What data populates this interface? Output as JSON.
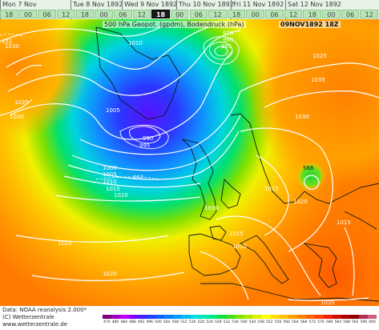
{
  "timeline": {
    "days": [
      {
        "label": "Mon 7 Nov",
        "hours": [
          "18"
        ]
      },
      {
        "label": "Tue 8 Nov 1892",
        "hours": [
          "00",
          "06",
          "12",
          "18"
        ]
      },
      {
        "label": "Wed 9 Nov 1892",
        "hours": [
          "00",
          "06",
          "12",
          "18"
        ]
      },
      {
        "label": "Thu 10 Nov 1892",
        "hours": [
          "00",
          "06",
          "12",
          "18"
        ]
      },
      {
        "label": "Fri 11 Nov 1892",
        "hours": [
          "00",
          "06",
          "12",
          "18"
        ]
      },
      {
        "label": "Sat 12 Nov 1892",
        "hours": [
          "00",
          "06",
          "12"
        ]
      }
    ],
    "extra_hours": [
      "18",
      "00",
      "06",
      "12",
      "18",
      "00",
      "06",
      "12",
      "18",
      "00",
      "06",
      "12",
      "18",
      "00",
      "06",
      "12",
      "18",
      "00",
      "06",
      "12"
    ],
    "selected": "18"
  },
  "map": {
    "title": "500 hPa Geopot. (gpdm), Bodendruck (hPa)",
    "date": "09NOV1892 18Z",
    "pressure_labels": [
      "1030",
      "1035",
      "1030",
      "1005",
      "1010",
      "990",
      "995",
      "985",
      "980",
      "975",
      "1000",
      "1005",
      "1010",
      "1015",
      "1020",
      "1025",
      "1030",
      "1035",
      "1025",
      "1030",
      "1020",
      "1015",
      "1010",
      "1015",
      "1020",
      "1025",
      "1030",
      "1035",
      "1015"
    ],
    "geopot_labels": [
      "552",
      "552",
      "568"
    ]
  },
  "footer": {
    "line1": "Data: NOAA reanalysis 2.000*",
    "line2": "(C) Wetterzentrale",
    "line3": "www.wetterzentrale.de"
  },
  "scale": {
    "ticks": [
      "470",
      "480",
      "484",
      "488",
      "492",
      "496",
      "500",
      "504",
      "508",
      "512",
      "516",
      "520",
      "524",
      "528",
      "532",
      "536",
      "540",
      "544",
      "548",
      "552",
      "556",
      "560",
      "564",
      "568",
      "572",
      "576",
      "580",
      "584",
      "588",
      "592",
      "596",
      "600"
    ],
    "colors": [
      "#7f007f",
      "#a000c0",
      "#c000ff",
      "#8000ff",
      "#4020ff",
      "#2040ff",
      "#1060ff",
      "#0080ff",
      "#00a0ff",
      "#00c0f0",
      "#00e0e0",
      "#00e8b0",
      "#00e880",
      "#10e040",
      "#40e020",
      "#80e000",
      "#b0e800",
      "#e0f000",
      "#ffff00",
      "#ffe000",
      "#ffc000",
      "#ffa000",
      "#ff8000",
      "#ff6000",
      "#ff4000",
      "#f02000",
      "#d01000",
      "#b00000",
      "#900000",
      "#b03050",
      "#d06080"
    ]
  }
}
